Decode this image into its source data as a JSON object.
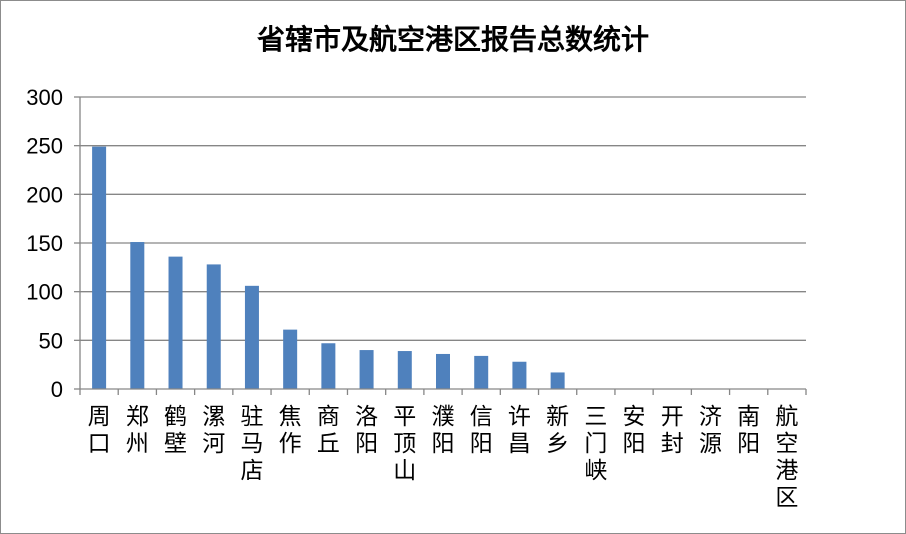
{
  "chart_data": {
    "type": "bar",
    "title": "省辖市及航空港区报告总数统计",
    "xlabel": "",
    "ylabel": "",
    "ylim": [
      0,
      300
    ],
    "yticks": [
      0,
      50,
      100,
      150,
      200,
      250,
      300
    ],
    "grid": true,
    "legend": "none",
    "categories": [
      "周口",
      "郑州",
      "鹤壁",
      "漯河",
      "驻马店",
      "焦作",
      "商丘",
      "洛阳",
      "平顶山",
      "濮阳",
      "信阳",
      "许昌",
      "新乡",
      "三门峡",
      "安阳",
      "开封",
      "济源",
      "南阳",
      "航空港区"
    ],
    "values": [
      249,
      151,
      136,
      128,
      106,
      61,
      47,
      40,
      39,
      36,
      34,
      28,
      17,
      0,
      0,
      0,
      0,
      0,
      0
    ],
    "bar_color": "#4f81bd",
    "grid_color": "#868686"
  }
}
